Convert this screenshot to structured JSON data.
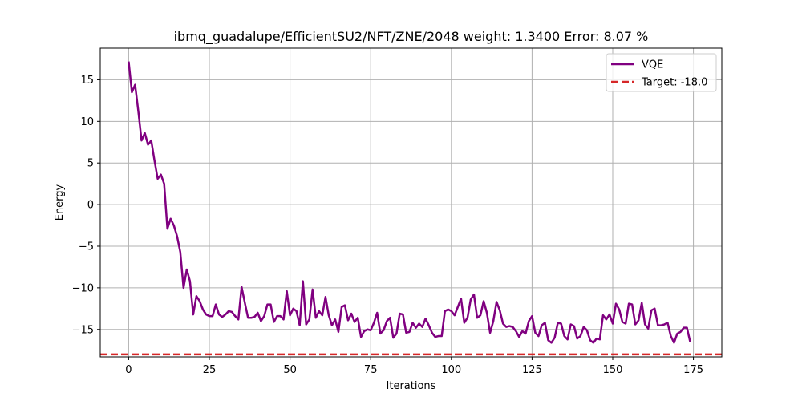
{
  "chart_data": {
    "type": "line",
    "title": "ibmq_guadalupe/EfficientSU2/NFT/ZNE/2048 weight: 1.3400 Error: 8.07 %",
    "xlabel": "Iterations",
    "ylabel": "Energy",
    "xlim": [
      -8.8,
      183.8
    ],
    "ylim": [
      -18.3,
      18.8
    ],
    "xticks": [
      0,
      25,
      50,
      75,
      100,
      125,
      150,
      175
    ],
    "yticks": [
      -15,
      -10,
      -5,
      0,
      5,
      10,
      15
    ],
    "xtick_labels": [
      "0",
      "25",
      "50",
      "75",
      "100",
      "125",
      "150",
      "175"
    ],
    "ytick_labels": [
      "−15",
      "−10",
      "−5",
      "0",
      "5",
      "10",
      "15"
    ],
    "grid": true,
    "legend_position": "upper-right",
    "series": [
      {
        "name": "VQE",
        "color": "#800080",
        "style": "solid",
        "y": [
          17.2,
          13.5,
          14.4,
          11.2,
          7.7,
          8.6,
          7.2,
          7.7,
          5.3,
          3.1,
          3.6,
          2.5,
          -2.9,
          -1.7,
          -2.5,
          -3.8,
          -5.7,
          -10.0,
          -7.8,
          -9.2,
          -13.2,
          -11.0,
          -11.6,
          -12.6,
          -13.2,
          -13.4,
          -13.4,
          -12.0,
          -13.2,
          -13.5,
          -13.2,
          -12.8,
          -12.9,
          -13.4,
          -13.8,
          -9.9,
          -11.8,
          -13.6,
          -13.6,
          -13.5,
          -13.0,
          -14.0,
          -13.4,
          -12.0,
          -12.0,
          -14.1,
          -13.4,
          -13.4,
          -13.8,
          -10.4,
          -13.3,
          -12.5,
          -12.8,
          -14.5,
          -9.2,
          -14.4,
          -13.8,
          -10.2,
          -13.6,
          -12.8,
          -13.3,
          -11.1,
          -13.3,
          -14.5,
          -13.8,
          -15.3,
          -12.3,
          -12.1,
          -13.9,
          -13.1,
          -14.1,
          -13.6,
          -15.9,
          -15.2,
          -15.0,
          -15.1,
          -14.2,
          -13.0,
          -15.5,
          -15.1,
          -14.0,
          -13.6,
          -16.0,
          -15.5,
          -13.1,
          -13.2,
          -15.4,
          -15.3,
          -14.2,
          -14.8,
          -14.3,
          -14.7,
          -13.7,
          -14.5,
          -15.4,
          -15.9,
          -15.8,
          -15.8,
          -12.8,
          -12.6,
          -12.8,
          -13.3,
          -12.3,
          -11.3,
          -14.2,
          -13.6,
          -11.4,
          -10.8,
          -13.6,
          -13.3,
          -11.6,
          -13.0,
          -15.4,
          -14.0,
          -11.7,
          -12.7,
          -14.3,
          -14.7,
          -14.6,
          -14.7,
          -15.2,
          -15.9,
          -15.2,
          -15.5,
          -14.0,
          -13.4,
          -15.4,
          -15.8,
          -14.5,
          -14.2,
          -16.3,
          -16.6,
          -16.0,
          -14.2,
          -14.3,
          -15.8,
          -16.2,
          -14.4,
          -14.6,
          -16.1,
          -15.8,
          -14.7,
          -15.1,
          -16.3,
          -16.6,
          -16.1,
          -16.2,
          -13.3,
          -13.8,
          -13.2,
          -14.3,
          -11.9,
          -12.6,
          -14.1,
          -14.3,
          -11.9,
          -12.0,
          -14.4,
          -13.9,
          -11.8,
          -14.4,
          -14.9,
          -12.7,
          -12.5,
          -14.5,
          -14.5,
          -14.4,
          -14.2,
          -15.8,
          -16.6,
          -15.5,
          -15.3,
          -14.8,
          -14.8,
          -16.5
        ]
      },
      {
        "name": "Target: -18.0",
        "color": "#d62728",
        "style": "dashed",
        "constant": -18.0
      }
    ]
  }
}
